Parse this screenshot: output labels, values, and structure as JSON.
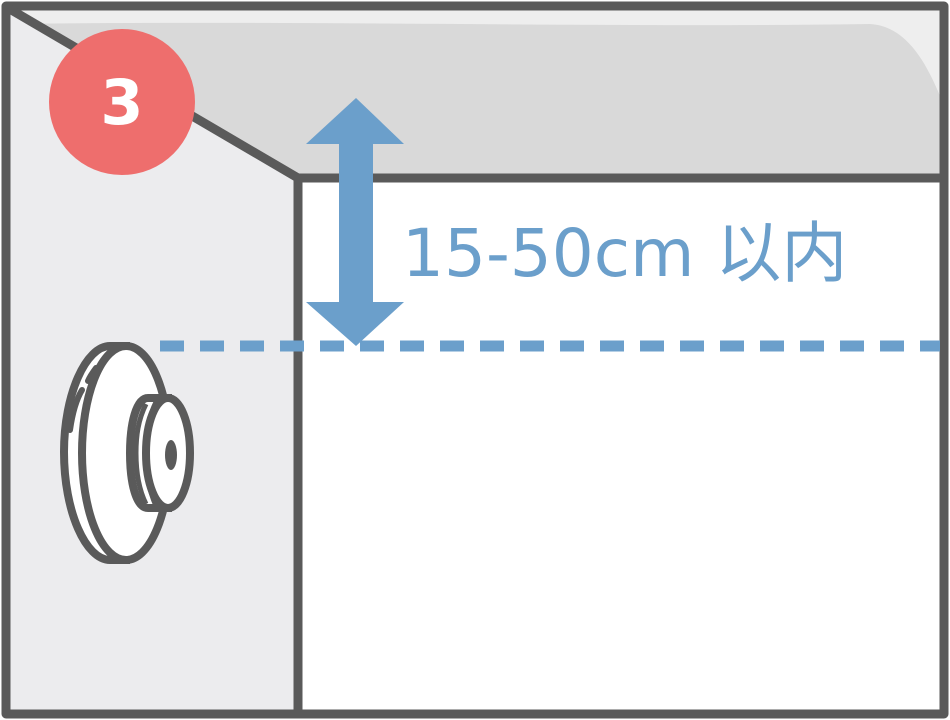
{
  "step": {
    "number": "3"
  },
  "measurement": {
    "label": "15-50cm 以内"
  },
  "colors": {
    "outline": "#5a5a5a",
    "ceiling": "#d9d9d9",
    "side_wall": "#ececee",
    "front_wall": "#ffffff",
    "badge": "#ee6e6d",
    "accent_blue": "#6b9fcb"
  },
  "icons": {
    "device": "wall-mounted-round-device-icon",
    "arrow": "double-headed-vertical-arrow-icon"
  }
}
